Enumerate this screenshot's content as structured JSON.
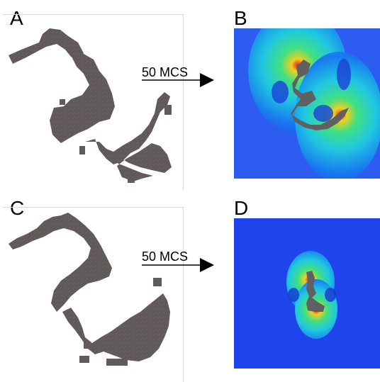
{
  "panels": {
    "a": {
      "label": "A"
    },
    "b": {
      "label": "B"
    },
    "c": {
      "label": "C"
    },
    "d": {
      "label": "D"
    }
  },
  "arrows": {
    "top": {
      "label": "50 MCS"
    },
    "bottom": {
      "label": "50 MCS"
    }
  }
}
